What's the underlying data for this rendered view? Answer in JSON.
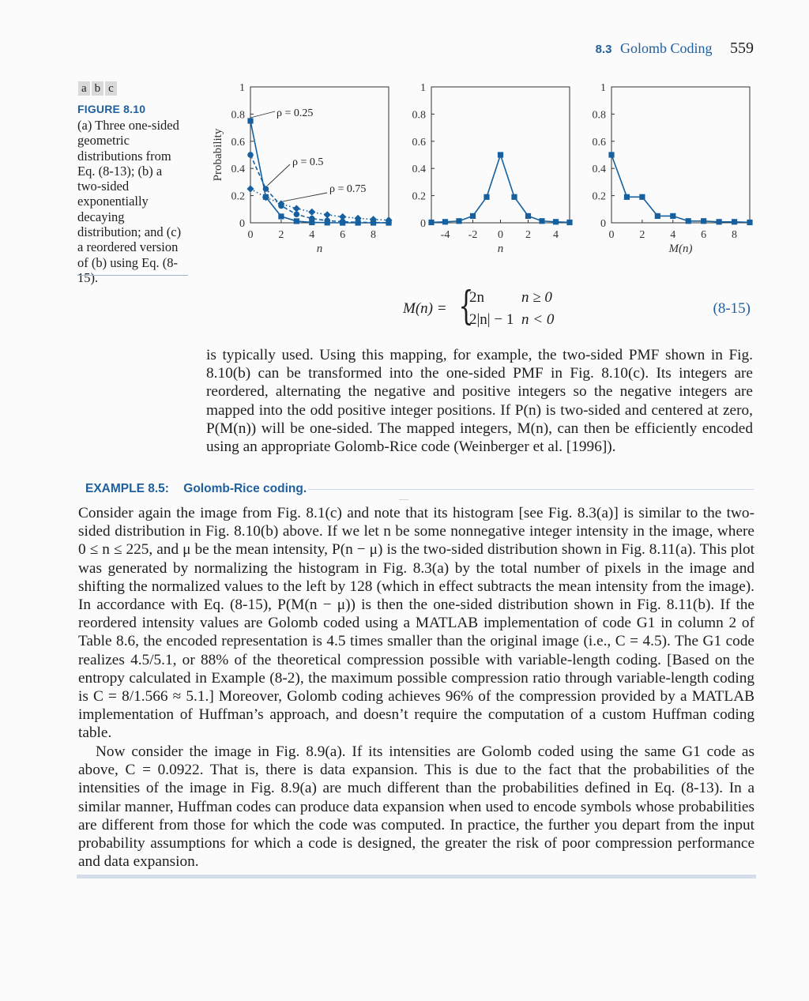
{
  "header": {
    "section": "8.3",
    "title": "Golomb Coding",
    "page": "559"
  },
  "figure": {
    "panel_tabs": [
      "a",
      "b",
      "c"
    ],
    "label": "FIGURE 8.10",
    "caption": "(a) Three one-sided geometric distributions from Eq. (8-13); (b) a two-sided exponentially decaying distribution; and (c) a reordered version of (b) using Eq. (8-15)."
  },
  "chart_data": [
    {
      "type": "line",
      "panel": "a",
      "ylabel": "Probability",
      "xlabel": "n",
      "xlim": [
        0,
        9
      ],
      "ylim": [
        0,
        1
      ],
      "xticks": [
        "0",
        "2",
        "4",
        "6",
        "8"
      ],
      "yticks": [
        "0",
        "0.2",
        "0.4",
        "0.6",
        "0.8",
        "1"
      ],
      "x": [
        0,
        1,
        2,
        3,
        4,
        5,
        6,
        7,
        8,
        9
      ],
      "series": [
        {
          "name": "ρ = 0.25",
          "marker": "square",
          "line": "solid",
          "values": [
            0.75,
            0.19,
            0.047,
            0.012,
            0.003,
            0.001,
            0.0,
            0.0,
            0.0,
            0.0
          ]
        },
        {
          "name": "ρ = 0.5",
          "marker": "circle",
          "line": "dashed",
          "values": [
            0.5,
            0.25,
            0.125,
            0.0625,
            0.031,
            0.016,
            0.008,
            0.004,
            0.002,
            0.001
          ]
        },
        {
          "name": "ρ = 0.75",
          "marker": "diamond",
          "line": "dotted",
          "values": [
            0.25,
            0.1875,
            0.14,
            0.105,
            0.079,
            0.059,
            0.044,
            0.033,
            0.025,
            0.019
          ]
        }
      ]
    },
    {
      "type": "line",
      "panel": "b",
      "xlabel": "n",
      "xlim": [
        -5,
        5
      ],
      "ylim": [
        0,
        1
      ],
      "xticks": [
        "-4",
        "-2",
        "0",
        "2",
        "4"
      ],
      "yticks": [
        "0",
        "0.2",
        "0.4",
        "0.6",
        "0.8",
        "1"
      ],
      "x": [
        -5,
        -4,
        -3,
        -2,
        -1,
        0,
        1,
        2,
        3,
        4,
        5
      ],
      "values": [
        0.003,
        0.007,
        0.013,
        0.05,
        0.19,
        0.5,
        0.19,
        0.05,
        0.013,
        0.007,
        0.003
      ]
    },
    {
      "type": "line",
      "panel": "c",
      "xlabel": "M(n)",
      "xlim": [
        0,
        9
      ],
      "ylim": [
        0,
        1
      ],
      "xticks": [
        "0",
        "2",
        "4",
        "6",
        "8"
      ],
      "yticks": [
        "0",
        "0.2",
        "0.4",
        "0.6",
        "0.8",
        "1"
      ],
      "x": [
        0,
        1,
        2,
        3,
        4,
        5,
        6,
        7,
        8,
        9
      ],
      "values": [
        0.5,
        0.19,
        0.19,
        0.05,
        0.05,
        0.013,
        0.013,
        0.007,
        0.007,
        0.003
      ]
    }
  ],
  "chart_annotations": [
    "ρ = 0.25",
    "ρ = 0.5",
    "ρ = 0.75"
  ],
  "equation": {
    "lhs": "M(n) =",
    "case1_expr": "2n",
    "case1_cond": "n ≥ 0",
    "case2_expr": "2|n| − 1",
    "case2_cond": "n < 0",
    "number": "(8-15)"
  },
  "para1": "is typically used. Using this mapping, for example, the two-sided PMF shown in Fig. 8.10(b) can be transformed into the one-sided PMF in Fig. 8.10(c). Its integers are reordered, alternating the negative and positive integers so the negative integers are mapped into the odd positive integer positions. If P(n) is two-sided and centered at zero, P(M(n)) will be one-sided. The mapped integers, M(n), can then be efficiently encoded using an appropriate Golomb-Rice code (Weinberger et al. [1996]).",
  "example": {
    "label": "EXAMPLE 8.5:",
    "title": "Golomb-Rice coding.",
    "para1": "Consider again the image from Fig. 8.1(c) and note that its histogram [see Fig. 8.3(a)] is similar to the two-sided distribution in Fig. 8.10(b) above. If we let n be some nonnegative integer intensity in the image, where 0 ≤ n ≤ 225, and μ be the mean intensity, P(n − μ) is the two-sided distribution shown in Fig. 8.11(a). This plot was generated by normalizing the histogram in Fig. 8.3(a) by the total number of pixels in the image and shifting the normalized values to the left by 128 (which in effect subtracts the mean intensity from the image). In accordance with Eq. (8-15), P(M(n − μ)) is then the one-sided distribution shown in Fig. 8.11(b). If the reordered intensity values are Golomb coded using a MATLAB implementation of code G1 in column 2 of Table 8.6, the encoded representation is 4.5 times smaller than the original image (i.e., C = 4.5). The G1 code realizes 4.5/5.1, or 88% of the theoretical compression possible with variable-length coding. [Based on the entropy calculated in Example (8-2), the maximum possible compression ratio through variable-length coding is C = 8/1.566 ≈ 5.1.] Moreover, Golomb coding achieves 96% of the compression provided by a MATLAB implementation of Huffman’s approach, and doesn’t require the computation of a custom Huffman coding table.",
    "para2": "Now consider the image in Fig. 8.9(a). If its intensities are Golomb coded using the same G1 code as above, C = 0.0922. That is, there is data expansion. This is due to the fact that the probabilities of the intensities of the image in Fig. 8.9(a) are much different than the probabilities defined in Eq. (8-13). In a similar manner, Huffman codes can produce data expansion when used to encode symbols whose probabilities are different from those for which the code was computed. In practice, the further you depart from the input probability assumptions for which a code is designed, the greater the risk of poor compression performance and data expansion."
  },
  "colors": {
    "accent": "#1f5f9e",
    "series": "#17609f"
  }
}
